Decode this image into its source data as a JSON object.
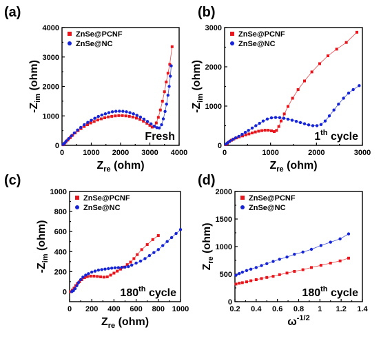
{
  "colors": {
    "series_a": "#e8161c",
    "series_b": "#1524d6",
    "axis": "#000000"
  },
  "chart_data": [
    {
      "type": "scatter",
      "panel": "(a)",
      "annotation": {
        "main": "Fresh",
        "sup": "",
        "tail": ""
      },
      "xlabel": {
        "main": "Z",
        "sub": "re",
        "tail": " (ohm)"
      },
      "ylabel": {
        "main": "-Z",
        "sub": "im",
        "tail": " (ohm)"
      },
      "xlim": [
        0,
        4000
      ],
      "ylim": [
        0,
        4000
      ],
      "xticks": [
        0,
        1000,
        2000,
        3000,
        4000
      ],
      "yticks": [
        0,
        1000,
        2000,
        3000,
        4000
      ],
      "legend": "top-left",
      "series": [
        {
          "name": "ZnSe@PCNF",
          "marker": "square",
          "points": [
            [
              40,
              20
            ],
            [
              80,
              60
            ],
            [
              130,
              110
            ],
            [
              200,
              180
            ],
            [
              280,
              260
            ],
            [
              360,
              340
            ],
            [
              450,
              420
            ],
            [
              550,
              500
            ],
            [
              650,
              570
            ],
            [
              760,
              640
            ],
            [
              870,
              700
            ],
            [
              980,
              760
            ],
            [
              1100,
              810
            ],
            [
              1220,
              860
            ],
            [
              1340,
              900
            ],
            [
              1460,
              935
            ],
            [
              1580,
              965
            ],
            [
              1700,
              985
            ],
            [
              1820,
              1000
            ],
            [
              1940,
              1010
            ],
            [
              2060,
              1010
            ],
            [
              2180,
              1000
            ],
            [
              2300,
              985
            ],
            [
              2420,
              960
            ],
            [
              2540,
              925
            ],
            [
              2660,
              880
            ],
            [
              2780,
              820
            ],
            [
              2900,
              750
            ],
            [
              3000,
              680
            ],
            [
              3080,
              620
            ],
            [
              3150,
              640
            ],
            [
              3220,
              760
            ],
            [
              3290,
              950
            ],
            [
              3360,
              1200
            ],
            [
              3430,
              1500
            ],
            [
              3500,
              1820
            ],
            [
              3560,
              2150
            ],
            [
              3620,
              2450
            ],
            [
              3680,
              2750
            ],
            [
              3760,
              3350
            ]
          ]
        },
        {
          "name": "ZnSe@NC",
          "marker": "circle",
          "points": [
            [
              40,
              30
            ],
            [
              90,
              80
            ],
            [
              150,
              150
            ],
            [
              230,
              230
            ],
            [
              320,
              320
            ],
            [
              420,
              420
            ],
            [
              530,
              520
            ],
            [
              640,
              610
            ],
            [
              760,
              700
            ],
            [
              880,
              780
            ],
            [
              1000,
              850
            ],
            [
              1120,
              920
            ],
            [
              1240,
              980
            ],
            [
              1360,
              1030
            ],
            [
              1480,
              1070
            ],
            [
              1600,
              1110
            ],
            [
              1720,
              1140
            ],
            [
              1840,
              1155
            ],
            [
              1960,
              1160
            ],
            [
              2080,
              1155
            ],
            [
              2200,
              1140
            ],
            [
              2320,
              1110
            ],
            [
              2440,
              1070
            ],
            [
              2560,
              1020
            ],
            [
              2680,
              960
            ],
            [
              2800,
              890
            ],
            [
              2920,
              810
            ],
            [
              3040,
              730
            ],
            [
              3150,
              650
            ],
            [
              3240,
              600
            ],
            [
              3320,
              590
            ],
            [
              3400,
              700
            ],
            [
              3460,
              900
            ],
            [
              3520,
              1150
            ],
            [
              3570,
              1400
            ],
            [
              3620,
              1700
            ],
            [
              3660,
              2000
            ],
            [
              3700,
              2350
            ],
            [
              3730,
              2700
            ]
          ]
        }
      ]
    },
    {
      "type": "scatter",
      "panel": "(b)",
      "annotation": {
        "main": "1",
        "sup": "th",
        "tail": " cycle"
      },
      "xlabel": {
        "main": "Z",
        "sub": "re",
        "tail": " (ohm)"
      },
      "ylabel": {
        "main": "-Z",
        "sub": "im",
        "tail": " (ohm)"
      },
      "xlim": [
        0,
        3000
      ],
      "ylim": [
        0,
        3000
      ],
      "xticks": [
        0,
        1000,
        2000,
        3000
      ],
      "yticks": [
        0,
        1000,
        2000,
        3000
      ],
      "legend": "top-left",
      "series": [
        {
          "name": "ZnSe@PCNF",
          "marker": "square",
          "points": [
            [
              30,
              20
            ],
            [
              60,
              50
            ],
            [
              100,
              90
            ],
            [
              150,
              130
            ],
            [
              200,
              160
            ],
            [
              260,
              190
            ],
            [
              320,
              215
            ],
            [
              390,
              240
            ],
            [
              460,
              265
            ],
            [
              530,
              290
            ],
            [
              600,
              315
            ],
            [
              670,
              340
            ],
            [
              740,
              360
            ],
            [
              810,
              375
            ],
            [
              880,
              385
            ],
            [
              950,
              385
            ],
            [
              1020,
              370
            ],
            [
              1080,
              350
            ],
            [
              1130,
              380
            ],
            [
              1180,
              480
            ],
            [
              1230,
              620
            ],
            [
              1300,
              800
            ],
            [
              1380,
              990
            ],
            [
              1480,
              1200
            ],
            [
              1600,
              1420
            ],
            [
              1740,
              1640
            ],
            [
              1900,
              1870
            ],
            [
              2070,
              2080
            ],
            [
              2250,
              2280
            ],
            [
              2440,
              2450
            ],
            [
              2650,
              2620
            ],
            [
              2880,
              2880
            ]
          ]
        },
        {
          "name": "ZnSe@NC",
          "marker": "circle",
          "points": [
            [
              30,
              30
            ],
            [
              70,
              70
            ],
            [
              120,
              110
            ],
            [
              180,
              150
            ],
            [
              240,
              190
            ],
            [
              310,
              230
            ],
            [
              380,
              280
            ],
            [
              450,
              330
            ],
            [
              520,
              380
            ],
            [
              600,
              440
            ],
            [
              680,
              500
            ],
            [
              760,
              560
            ],
            [
              840,
              620
            ],
            [
              930,
              670
            ],
            [
              1020,
              700
            ],
            [
              1110,
              710
            ],
            [
              1200,
              705
            ],
            [
              1290,
              690
            ],
            [
              1380,
              665
            ],
            [
              1470,
              640
            ],
            [
              1560,
              610
            ],
            [
              1650,
              580
            ],
            [
              1740,
              550
            ],
            [
              1830,
              520
            ],
            [
              1920,
              500
            ],
            [
              2010,
              500
            ],
            [
              2100,
              530
            ],
            [
              2190,
              620
            ],
            [
              2280,
              750
            ],
            [
              2380,
              900
            ],
            [
              2480,
              1050
            ],
            [
              2590,
              1200
            ],
            [
              2700,
              1330
            ],
            [
              2800,
              1420
            ],
            [
              2930,
              1520
            ]
          ]
        }
      ]
    },
    {
      "type": "scatter",
      "panel": "(c)",
      "annotation": {
        "main": "180",
        "sup": "th",
        "tail": " cycle"
      },
      "xlabel": {
        "main": "Z",
        "sub": "re",
        "tail": " (ohm)"
      },
      "ylabel": {
        "main": "-Z",
        "sub": "im",
        "tail": " (ohm)"
      },
      "xlim": [
        0,
        1000
      ],
      "ylim": [
        -100,
        1000
      ],
      "xticks": [
        0,
        200,
        400,
        600,
        800,
        1000
      ],
      "yticks": [
        0,
        200,
        400,
        600,
        800,
        1000
      ],
      "legend": "top-left",
      "series": [
        {
          "name": "ZnSe@PCNF",
          "marker": "square",
          "points": [
            [
              10,
              0
            ],
            [
              25,
              15
            ],
            [
              40,
              35
            ],
            [
              55,
              60
            ],
            [
              70,
              80
            ],
            [
              90,
              100
            ],
            [
              110,
              120
            ],
            [
              135,
              140
            ],
            [
              160,
              150
            ],
            [
              190,
              155
            ],
            [
              220,
              155
            ],
            [
              250,
              152
            ],
            [
              280,
              148
            ],
            [
              310,
              145
            ],
            [
              340,
              148
            ],
            [
              370,
              165
            ],
            [
              400,
              185
            ],
            [
              430,
              205
            ],
            [
              460,
              225
            ],
            [
              490,
              245
            ],
            [
              520,
              270
            ],
            [
              550,
              295
            ],
            [
              580,
              330
            ],
            [
              610,
              370
            ],
            [
              650,
              420
            ],
            [
              700,
              470
            ],
            [
              750,
              520
            ],
            [
              800,
              560
            ]
          ]
        },
        {
          "name": "ZnSe@NC",
          "marker": "circle",
          "points": [
            [
              20,
              0
            ],
            [
              35,
              10
            ],
            [
              50,
              30
            ],
            [
              65,
              60
            ],
            [
              80,
              90
            ],
            [
              100,
              120
            ],
            [
              120,
              145
            ],
            [
              145,
              165
            ],
            [
              170,
              180
            ],
            [
              200,
              195
            ],
            [
              230,
              205
            ],
            [
              260,
              215
            ],
            [
              290,
              220
            ],
            [
              320,
              225
            ],
            [
              350,
              230
            ],
            [
              380,
              235
            ],
            [
              410,
              238
            ],
            [
              440,
              240
            ],
            [
              470,
              242
            ],
            [
              500,
              245
            ],
            [
              530,
              250
            ],
            [
              560,
              265
            ],
            [
              600,
              285
            ],
            [
              640,
              305
            ],
            [
              680,
              330
            ],
            [
              720,
              360
            ],
            [
              760,
              390
            ],
            [
              800,
              420
            ],
            [
              840,
              460
            ],
            [
              880,
              500
            ],
            [
              920,
              540
            ],
            [
              960,
              580
            ],
            [
              1000,
              620
            ]
          ]
        }
      ]
    },
    {
      "type": "line",
      "panel": "(d)",
      "annotation": {
        "main": "180",
        "sup": "th",
        "tail": " cycle"
      },
      "xlabel": {
        "main": "ω",
        "sup": "-1/2",
        "tail": ""
      },
      "ylabel": {
        "main": "Z",
        "sub": "re",
        "tail": " (ohm)"
      },
      "xlim": [
        0.2,
        1.4
      ],
      "ylim": [
        0,
        2000
      ],
      "xticks": [
        0.2,
        0.4,
        0.6,
        0.8,
        1.0,
        1.2,
        1.4
      ],
      "yticks": [
        0,
        500,
        1000,
        1500,
        2000
      ],
      "legend": "top-left",
      "series": [
        {
          "name": "ZnSe@PCNF",
          "marker": "square",
          "points": [
            [
              0.21,
              320
            ],
            [
              0.24,
              335
            ],
            [
              0.27,
              345
            ],
            [
              0.31,
              360
            ],
            [
              0.35,
              380
            ],
            [
              0.4,
              400
            ],
            [
              0.45,
              420
            ],
            [
              0.5,
              440
            ],
            [
              0.56,
              460
            ],
            [
              0.62,
              490
            ],
            [
              0.69,
              520
            ],
            [
              0.76,
              550
            ],
            [
              0.84,
              580
            ],
            [
              0.92,
              620
            ],
            [
              1.01,
              660
            ],
            [
              1.1,
              700
            ],
            [
              1.19,
              740
            ],
            [
              1.27,
              790
            ]
          ]
        },
        {
          "name": "ZnSe@NC",
          "marker": "circle",
          "points": [
            [
              0.21,
              480
            ],
            [
              0.24,
              510
            ],
            [
              0.27,
              535
            ],
            [
              0.31,
              565
            ],
            [
              0.35,
              590
            ],
            [
              0.4,
              620
            ],
            [
              0.45,
              655
            ],
            [
              0.5,
              690
            ],
            [
              0.56,
              730
            ],
            [
              0.62,
              770
            ],
            [
              0.69,
              810
            ],
            [
              0.76,
              860
            ],
            [
              0.84,
              900
            ],
            [
              0.92,
              950
            ],
            [
              1.01,
              1020
            ],
            [
              1.1,
              1080
            ],
            [
              1.19,
              1140
            ],
            [
              1.27,
              1230
            ]
          ]
        }
      ]
    }
  ]
}
